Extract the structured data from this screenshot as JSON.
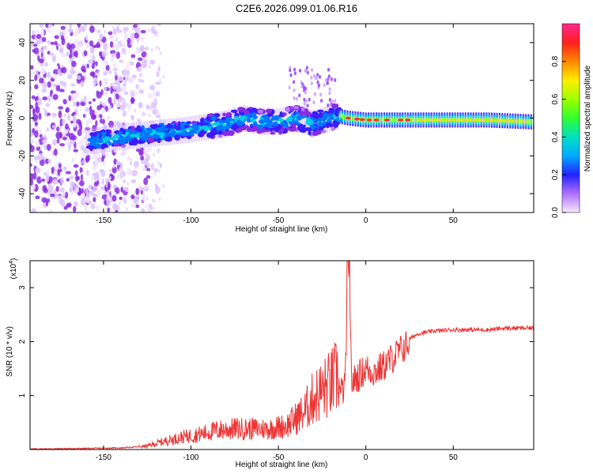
{
  "title": "C2E6.2026.099.01.06.R16",
  "chart_data": [
    {
      "type": "heatmap",
      "xlabel": "Height of straight line (km)",
      "ylabel": "Frequency (Hz)",
      "xlim": [
        -192,
        96
      ],
      "ylim": [
        -50,
        50
      ],
      "xticks": [
        -150,
        -100,
        -50,
        0,
        50
      ],
      "yticks": [
        -40,
        -20,
        0,
        20,
        40
      ],
      "colorbar": {
        "label": "Normalized spectral amplitude",
        "range": [
          0,
          1
        ],
        "ticks": [
          0.0,
          0.2,
          0.4,
          0.6,
          0.8
        ],
        "tick_labels": [
          "0.0",
          "0.2",
          "0.4",
          "0.6",
          "0.8"
        ]
      },
      "ridge": {
        "description": "frequency ridge center vs height",
        "x": [
          -155,
          -140,
          -120,
          -100,
          -80,
          -70,
          -60,
          -50,
          -40,
          -30,
          -20,
          -15,
          -10,
          0,
          10,
          20,
          30,
          50,
          70,
          95
        ],
        "y": [
          -12,
          -10,
          -8,
          -6,
          -3,
          0,
          -2,
          -2,
          0,
          -3,
          0,
          1,
          0,
          -1,
          -1,
          -1,
          -1,
          -1,
          -1,
          -2
        ]
      }
    },
    {
      "type": "line",
      "xlabel": "Height of straight line (km)",
      "ylabel": "SNR (10 * v/v)",
      "scale_label": "(x10",
      "scale_exp": "4",
      "scale_close": ")",
      "xlim": [
        -192,
        96
      ],
      "ylim": [
        0,
        3.5
      ],
      "xticks": [
        -150,
        -100,
        -50,
        0,
        50
      ],
      "yticks": [
        1,
        2,
        3
      ],
      "series": [
        {
          "name": "SNR",
          "color": "#ee3333",
          "x": [
            -192,
            -160,
            -140,
            -125,
            -115,
            -105,
            -95,
            -85,
            -75,
            -65,
            -55,
            -45,
            -40,
            -35,
            -30,
            -25,
            -20,
            -15,
            -12,
            -10,
            -8,
            -5,
            0,
            5,
            10,
            15,
            20,
            25,
            30,
            40,
            50,
            60,
            70,
            80,
            90,
            96
          ],
          "y": [
            0.0,
            0.01,
            0.02,
            0.05,
            0.12,
            0.18,
            0.22,
            0.28,
            0.3,
            0.3,
            0.3,
            0.35,
            0.45,
            0.55,
            0.75,
            0.85,
            0.95,
            1.1,
            1.2,
            3.4,
            1.3,
            1.4,
            1.55,
            1.5,
            1.6,
            1.75,
            1.9,
            2.05,
            2.15,
            2.2,
            2.22,
            2.22,
            2.22,
            2.25,
            2.25,
            2.25
          ]
        }
      ]
    }
  ]
}
